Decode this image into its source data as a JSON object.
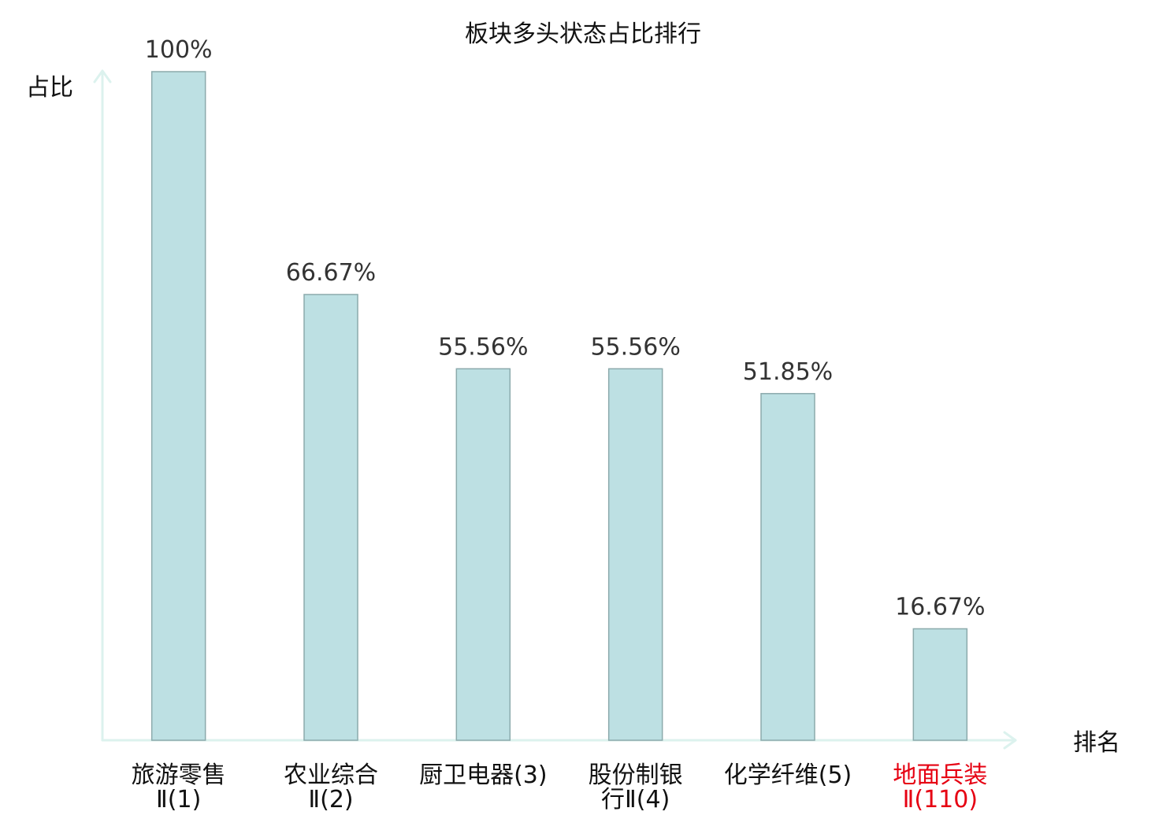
{
  "chart_data": {
    "type": "bar",
    "title": "板块多头状态占比排行",
    "ylabel": "占比",
    "xlabel": "排名",
    "categories": [
      "旅游零售Ⅱ(1)",
      "农业综合Ⅱ(2)",
      "厨卫电器(3)",
      "股份制银行Ⅱ(4)",
      "化学纤维(5)",
      "地面兵装Ⅱ(110)"
    ],
    "values": [
      100,
      66.67,
      55.56,
      55.56,
      51.85,
      16.67
    ],
    "value_labels": [
      "100%",
      "66.67%",
      "55.56%",
      "55.56%",
      "51.85%",
      "16.67%"
    ],
    "ylim": [
      0,
      100
    ],
    "grid": false,
    "colors": {
      "bar_fill": "#bde0e3",
      "bar_stroke": "#8caaac",
      "axis": "#dcf2ee",
      "text": "#111111",
      "value_text": "#333333"
    },
    "category_label_colors": [
      "#111111",
      "#111111",
      "#111111",
      "#111111",
      "#111111",
      "#e60012"
    ]
  }
}
